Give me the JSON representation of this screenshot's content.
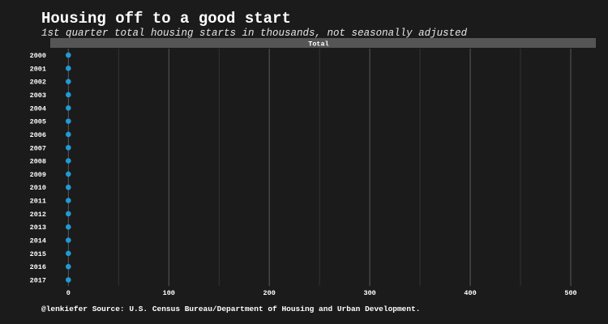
{
  "title": "Housing off to a good start",
  "subtitle": "1st quarter total housing starts in thousands, not seasonally adjusted",
  "caption": "@lenkiefer Source: U.S. Census Bureau/Department of Housing and Urban Development.",
  "colors": {
    "background": "#1b1b1b",
    "panel": "#1b1b1b",
    "strip": "#555555",
    "grid_major": "#5a5a5a",
    "grid_minor": "#3a3a3a",
    "point": "#1f9ad6",
    "text": "#ffffff"
  },
  "chart_data": {
    "type": "scatter",
    "facet_strip": "Total",
    "title": "Housing off to a good start",
    "subtitle": "1st quarter total housing starts in thousands, not seasonally adjusted",
    "xlabel": "",
    "ylabel": "",
    "xlim": [
      -18,
      525
    ],
    "x_ticks": [
      0,
      100,
      200,
      300,
      400,
      500
    ],
    "x_tick_labels": [
      "0",
      "100",
      "200",
      "300",
      "400",
      "500"
    ],
    "categories": [
      "2000",
      "2001",
      "2002",
      "2003",
      "2004",
      "2005",
      "2006",
      "2007",
      "2008",
      "2009",
      "2010",
      "2011",
      "2012",
      "2013",
      "2014",
      "2015",
      "2016",
      "2017"
    ],
    "values": [
      0,
      0,
      0,
      0,
      0,
      0,
      0,
      0,
      0,
      0,
      0,
      0,
      0,
      0,
      0,
      0,
      0,
      0
    ],
    "grid": true,
    "legend": "none"
  }
}
